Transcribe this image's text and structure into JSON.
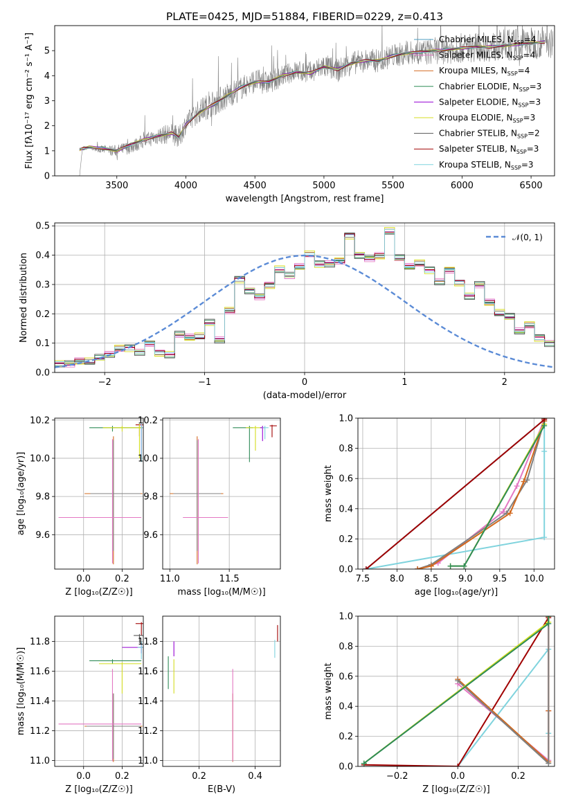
{
  "title": "PLATE=0425, MJD=51884, FIBERID=0229, z=0.413",
  "colors": [
    "#4c9ec2",
    "#e377c2",
    "#d2691e",
    "#2e8b57",
    "#9400d3",
    "#d4dd20",
    "#555555",
    "#a00000",
    "#7fd3dd",
    "#808080"
  ],
  "chart_data": [
    {
      "id": "spectrum",
      "type": "line",
      "xlabel": "wavelength [Angstrom, rest frame]",
      "ylabel": "Flux [f$_\\lambda$10$^{-17}$ erg cm$^{-2}$ s$^{-1}$ A$^{-1}$]",
      "ylabel_display": "Flux [fλ10⁻¹⁷ erg cm⁻² s⁻¹ A⁻¹]",
      "xlim": [
        3050,
        6670
      ],
      "ylim": [
        0,
        6.0
      ],
      "xticks": [
        3500,
        4000,
        4500,
        5000,
        5500,
        6000,
        6500
      ],
      "yticks": [
        0,
        1,
        2,
        3,
        4,
        5
      ],
      "legend_position": "top-right",
      "legend": [
        "Chabrier MILES, N_SSP=4",
        "Salpeter MILES, N_SSP=4",
        "Kroupa MILES, N_SSP=4",
        "Chabrier ELODIE, N_SSP=3",
        "Salpeter ELODIE, N_SSP=3",
        "Kroupa ELODIE, N_SSP=3",
        "Chabrier STELIB, N_SSP=2",
        "Salpeter STELIB, N_SSP=3",
        "Kroupa STELIB, N_SSP=3"
      ],
      "data_envelope": {
        "x": [
          3230,
          3250,
          3300,
          3400,
          3500,
          3600,
          3700,
          3800,
          3900,
          3950,
          4000,
          4100,
          4200,
          4300,
          4400,
          4500,
          4600,
          4700,
          4800,
          4900,
          5000,
          5100,
          5200,
          5300,
          5400,
          5500,
          5600,
          5700,
          5800,
          5900,
          6000,
          6100,
          6200,
          6300,
          6400,
          6500,
          6600
        ],
        "y": [
          0,
          1.05,
          1.1,
          1.05,
          1.0,
          1.15,
          1.4,
          1.6,
          1.7,
          1.5,
          2.1,
          2.6,
          2.9,
          3.2,
          3.5,
          3.8,
          3.7,
          4.0,
          4.2,
          4.1,
          4.4,
          4.2,
          4.5,
          4.6,
          4.6,
          4.8,
          4.9,
          4.9,
          5.0,
          5.05,
          5.1,
          5.15,
          5.15,
          5.2,
          5.25,
          5.3,
          5.35
        ]
      },
      "noise_amplitude": [
        0.05,
        0.05,
        0.05,
        0.3,
        0.4,
        0.45,
        0.5,
        0.6,
        0.7,
        0.8,
        0.7,
        0.8,
        0.9,
        0.9,
        0.8,
        0.8,
        0.8,
        0.7,
        0.7,
        0.8,
        0.8,
        0.8,
        0.8,
        0.8,
        0.8,
        0.8,
        0.8,
        0.9,
        0.9,
        1.0,
        1.0,
        1.0,
        1.0,
        1.1,
        1.1,
        1.1,
        1.1
      ],
      "model": {
        "x": [
          3230,
          3260,
          3300,
          3400,
          3500,
          3600,
          3700,
          3800,
          3900,
          3950,
          4000,
          4100,
          4200,
          4300,
          4400,
          4500,
          4600,
          4700,
          4800,
          4900,
          5000,
          5100,
          5200,
          5300,
          5400,
          5500,
          5600,
          5700,
          5800,
          5900,
          6000,
          6100,
          6200,
          6300,
          6400,
          6500,
          6600
        ],
        "y": [
          1.05,
          1.1,
          1.15,
          1.1,
          1.0,
          1.25,
          1.45,
          1.6,
          1.7,
          1.55,
          2.05,
          2.55,
          2.85,
          3.2,
          3.55,
          3.75,
          3.75,
          4.0,
          4.15,
          4.1,
          4.35,
          4.25,
          4.5,
          4.6,
          4.6,
          4.8,
          4.9,
          4.95,
          5.0,
          5.05,
          5.1,
          5.15,
          5.15,
          5.2,
          5.25,
          5.3,
          5.35
        ]
      }
    },
    {
      "id": "residuals",
      "type": "histogram",
      "xlabel": "(data-model)/error",
      "ylabel": "Normed distribution",
      "xlim": [
        -2.5,
        2.5
      ],
      "ylim": [
        0,
        0.51
      ],
      "xticks": [
        -2,
        -1,
        0,
        1,
        2
      ],
      "yticks": [
        0.0,
        0.1,
        0.2,
        0.3,
        0.4,
        0.5
      ],
      "legend_position": "top-right",
      "legend": [
        "𝒩(0, 1)"
      ],
      "bin_width": 0.1,
      "bins_start": -2.5,
      "values": [
        0.03,
        0.03,
        0.04,
        0.035,
        0.05,
        0.06,
        0.08,
        0.085,
        0.07,
        0.1,
        0.07,
        0.06,
        0.13,
        0.12,
        0.12,
        0.17,
        0.11,
        0.21,
        0.32,
        0.28,
        0.26,
        0.3,
        0.35,
        0.33,
        0.36,
        0.4,
        0.37,
        0.37,
        0.38,
        0.47,
        0.4,
        0.39,
        0.4,
        0.48,
        0.39,
        0.36,
        0.37,
        0.35,
        0.31,
        0.35,
        0.31,
        0.26,
        0.3,
        0.24,
        0.2,
        0.19,
        0.14,
        0.16,
        0.12,
        0.1,
        0.1,
        0.08,
        0.07,
        0.06,
        0.06,
        0.06,
        0.05,
        0.04,
        0.04,
        0.03,
        0.03,
        0.03
      ],
      "series_offsets": [
        0.0,
        0.012,
        -0.01,
        0.008,
        -0.006,
        0.015,
        -0.012,
        0.005,
        -0.008
      ]
    },
    {
      "id": "age-vs-Z",
      "type": "errorbar",
      "xlabel": "Z [log$_{10}$(Z/Z$_\\odot$)]",
      "xlabel_display": "Z [log₁₀(Z/Z☉)]",
      "ylabel": "age  [log$_{10}$(age/yr)]",
      "ylabel_display": "age  [log₁₀(age/yr)]",
      "xlim": [
        -0.15,
        0.31
      ],
      "ylim": [
        9.42,
        10.21
      ],
      "xticks": [
        0.0,
        0.2
      ],
      "yticks": [
        9.6,
        9.8,
        10.0,
        10.2
      ],
      "points": [
        {
          "x": 0.155,
          "y": 9.815,
          "xerr": [
            0.15,
            0.15
          ],
          "yerr": [
            0.37,
            0.3
          ],
          "c": 2
        },
        {
          "x": 0.155,
          "y": 9.815,
          "xerr": [
            0.12,
            0.14
          ],
          "yerr": [
            0.3,
            0.28
          ],
          "c": 9
        },
        {
          "x": 0.15,
          "y": 9.69,
          "xerr": [
            0.28,
            0.15
          ],
          "yerr": [
            0.24,
            0.41
          ],
          "c": 1
        },
        {
          "x": 0.15,
          "y": 10.16,
          "xerr": [
            0.12,
            0.15
          ],
          "yerr": [
            0.02,
            0.01
          ],
          "c": 3
        },
        {
          "x": 0.2,
          "y": 10.16,
          "xerr": [
            0.1,
            0.1
          ],
          "yerr": [
            0.02,
            0.01
          ],
          "c": 5
        },
        {
          "x": 0.29,
          "y": 10.175,
          "xerr": [
            0.02,
            0.02
          ],
          "yerr": [
            0.06,
            0.005
          ],
          "c": 7
        },
        {
          "x": 0.3,
          "y": 10.16,
          "xerr": [
            0.01,
            0.01
          ],
          "yerr": [
            0.15,
            0.02
          ],
          "c": 4
        },
        {
          "x": 0.3,
          "y": 10.16,
          "xerr": [
            0.01,
            0.01
          ],
          "yerr": [
            0.18,
            0.02
          ],
          "c": 8
        },
        {
          "x": 0.29,
          "y": 10.16,
          "xerr": [
            0.01,
            0.01
          ],
          "yerr": [
            0.16,
            0.02
          ],
          "c": 5
        }
      ]
    },
    {
      "id": "age-vs-mass",
      "type": "errorbar",
      "xlabel": "mass [log$_{10}$(M/M$_\\odot$)]",
      "xlabel_display": "mass [log₁₀(M/M☉)]",
      "xlim": [
        10.94,
        11.93
      ],
      "ylim": [
        9.42,
        10.21
      ],
      "xticks": [
        11.0,
        11.5
      ],
      "yticks": [
        9.6,
        9.8,
        10.0,
        10.2
      ],
      "points": [
        {
          "x": 11.23,
          "y": 9.815,
          "xerr": [
            0.23,
            0.22
          ],
          "yerr": [
            0.37,
            0.3
          ],
          "c": 2
        },
        {
          "x": 11.23,
          "y": 9.815,
          "xerr": [
            0.2,
            0.2
          ],
          "yerr": [
            0.3,
            0.28
          ],
          "c": 9
        },
        {
          "x": 11.24,
          "y": 9.69,
          "xerr": [
            0.13,
            0.25
          ],
          "yerr": [
            0.24,
            0.41
          ],
          "c": 1
        },
        {
          "x": 11.67,
          "y": 10.16,
          "xerr": [
            0.14,
            0.03
          ],
          "yerr": [
            0.18,
            0.01
          ],
          "c": 3
        },
        {
          "x": 11.72,
          "y": 10.16,
          "xerr": [
            0.08,
            0.05
          ],
          "yerr": [
            0.12,
            0.01
          ],
          "c": 5
        },
        {
          "x": 11.86,
          "y": 10.17,
          "xerr": [
            0.02,
            0.04
          ],
          "yerr": [
            0.06,
            0.005
          ],
          "c": 7
        },
        {
          "x": 11.78,
          "y": 10.16,
          "xerr": [
            0.02,
            0.02
          ],
          "yerr": [
            0.07,
            0.01
          ],
          "c": 4
        },
        {
          "x": 11.8,
          "y": 10.16,
          "xerr": [
            0.02,
            0.03
          ],
          "yerr": [
            0.06,
            0.01
          ],
          "c": 8
        }
      ]
    },
    {
      "id": "cumulative-age",
      "type": "line",
      "xlabel": "age  [log$_{10}$(age/yr)]",
      "xlabel_display": "age  [log₁₀(age/yr)]",
      "ylabel": "mass weight",
      "xlim": [
        7.43,
        10.3
      ],
      "ylim": [
        0,
        1.0
      ],
      "xticks": [
        7.5,
        8.0,
        8.5,
        9.0,
        9.5,
        10.0
      ],
      "yticks": [
        0.0,
        0.2,
        0.4,
        0.6,
        0.8,
        1.0
      ],
      "series": [
        {
          "c": 8,
          "x": [
            7.55,
            10.15,
            10.15,
            10.15
          ],
          "y": [
            0.0,
            0.21,
            0.78,
            1.0
          ]
        },
        {
          "c": 0,
          "x": [
            7.55,
            10.15,
            10.15
          ],
          "y": [
            0.0,
            0.99,
            1.0
          ]
        },
        {
          "c": 1,
          "x": [
            8.3,
            8.6,
            9.55,
            9.75,
            10.15,
            10.15
          ],
          "y": [
            0.0,
            0.04,
            0.38,
            0.55,
            0.99,
            1.0
          ]
        },
        {
          "c": 9,
          "x": [
            8.3,
            8.5,
            9.6,
            9.9,
            10.15,
            10.15
          ],
          "y": [
            0.0,
            0.03,
            0.37,
            0.59,
            0.98,
            1.0
          ]
        },
        {
          "c": 2,
          "x": [
            8.3,
            8.5,
            9.65,
            9.85,
            10.15,
            10.15
          ],
          "y": [
            0.0,
            0.02,
            0.37,
            0.58,
            0.98,
            1.0
          ]
        },
        {
          "c": 5,
          "x": [
            8.78,
            8.98,
            10.15,
            10.15
          ],
          "y": [
            0.02,
            0.02,
            0.96,
            1.0
          ]
        },
        {
          "c": 3,
          "x": [
            8.78,
            8.98,
            10.15,
            10.15
          ],
          "y": [
            0.02,
            0.02,
            0.95,
            1.0
          ]
        },
        {
          "c": 7,
          "x": [
            7.55,
            10.15,
            10.15
          ],
          "y": [
            0.0,
            0.99,
            1.0
          ]
        }
      ]
    },
    {
      "id": "mass-vs-Z",
      "type": "errorbar",
      "xlabel": "Z [log$_{10}$(Z/Z$_\\odot$)]",
      "xlabel_display": "Z [log₁₀(Z/Z☉)]",
      "ylabel": "mass [log$_{10}$(M/M$_\\odot$)]",
      "ylabel_display": "mass [log₁₀(M/M☉)]",
      "xlim": [
        -0.15,
        0.31
      ],
      "ylim": [
        10.96,
        11.97
      ],
      "xticks": [
        0.0,
        0.2
      ],
      "yticks": [
        11.0,
        11.2,
        11.4,
        11.6,
        11.8
      ],
      "points": [
        {
          "x": 0.155,
          "y": 11.23,
          "xerr": [
            0.15,
            0.15
          ],
          "yerr": [
            0.24,
            0.22
          ],
          "c": 2
        },
        {
          "x": 0.155,
          "y": 11.23,
          "xerr": [
            0.14,
            0.14
          ],
          "yerr": [
            0.22,
            0.22
          ],
          "c": 9
        },
        {
          "x": 0.15,
          "y": 11.245,
          "xerr": [
            0.28,
            0.15
          ],
          "yerr": [
            0.25,
            0.37
          ],
          "c": 1
        },
        {
          "x": 0.15,
          "y": 11.67,
          "xerr": [
            0.12,
            0.15
          ],
          "yerr": [
            0.02,
            0.01
          ],
          "c": 3
        },
        {
          "x": 0.2,
          "y": 11.65,
          "xerr": [
            0.12,
            0.1
          ],
          "yerr": [
            0.2,
            0.01
          ],
          "c": 5
        },
        {
          "x": 0.3,
          "y": 11.92,
          "xerr": [
            0.03,
            0.01
          ],
          "yerr": [
            0.08,
            0.01
          ],
          "c": 7
        },
        {
          "x": 0.29,
          "y": 11.84,
          "xerr": [
            0.03,
            0.02
          ],
          "yerr": [
            0.05,
            0.01
          ],
          "c": 6
        },
        {
          "x": 0.3,
          "y": 11.76,
          "xerr": [
            0.1,
            0.01
          ],
          "yerr": [
            0.04,
            0.03
          ],
          "c": 4
        },
        {
          "x": 0.3,
          "y": 11.76,
          "xerr": [
            0.02,
            0.01
          ],
          "yerr": [
            0.08,
            0.04
          ],
          "c": 8
        }
      ]
    },
    {
      "id": "mass-vs-EBV",
      "type": "errorbar",
      "xlabel": "E(B-V)",
      "xlim": [
        0.07,
        0.49
      ],
      "ylim": [
        10.96,
        11.97
      ],
      "xticks": [
        0.2,
        0.4
      ],
      "yticks": [
        11.0,
        11.2,
        11.4,
        11.6,
        11.8
      ],
      "points": [
        {
          "x": 0.32,
          "y": 11.23,
          "xerr": [
            0.0,
            0.0
          ],
          "yerr": [
            0.24,
            0.22
          ],
          "c": 2
        },
        {
          "x": 0.32,
          "y": 11.245,
          "xerr": [
            0.0,
            0.0
          ],
          "yerr": [
            0.25,
            0.37
          ],
          "c": 1
        },
        {
          "x": 0.09,
          "y": 11.6,
          "xerr": [
            0.0,
            0.0
          ],
          "yerr": [
            0.12,
            0.1
          ],
          "c": 3
        },
        {
          "x": 0.11,
          "y": 11.58,
          "xerr": [
            0.0,
            0.0
          ],
          "yerr": [
            0.13,
            0.1
          ],
          "c": 5
        },
        {
          "x": 0.11,
          "y": 11.75,
          "xerr": [
            0.0,
            0.0
          ],
          "yerr": [
            0.05,
            0.05
          ],
          "c": 4
        },
        {
          "x": 0.47,
          "y": 11.75,
          "xerr": [
            0.0,
            0.0
          ],
          "yerr": [
            0.06,
            0.06
          ],
          "c": 8
        },
        {
          "x": 0.48,
          "y": 11.85,
          "xerr": [
            0.0,
            0.0
          ],
          "yerr": [
            0.05,
            0.06
          ],
          "c": 7
        }
      ]
    },
    {
      "id": "cumulative-Z",
      "type": "line",
      "xlabel": "Z [log$_{10}$(Z/Z$_\\odot$)]",
      "xlabel_display": "Z [log₁₀(Z/Z☉)]",
      "ylabel": "mass weight",
      "xlim": [
        -0.33,
        0.32
      ],
      "ylim": [
        0,
        1.0
      ],
      "xticks": [
        -0.2,
        0.0,
        0.2
      ],
      "yticks": [
        0.0,
        0.2,
        0.4,
        0.6,
        0.8,
        1.0
      ],
      "series": [
        {
          "c": 8,
          "x": [
            0.0,
            0.3,
            0.3,
            0.3
          ],
          "y": [
            0.0,
            0.78,
            0.22,
            1.0
          ]
        },
        {
          "c": 7,
          "x": [
            -0.31,
            0.0,
            0.3,
            0.3
          ],
          "y": [
            0.01,
            0.0,
            0.99,
            1.0
          ]
        },
        {
          "c": 1,
          "x": [
            0.0,
            0.3,
            0.3,
            0.3
          ],
          "y": [
            0.55,
            0.04,
            0.37,
            1.0
          ]
        },
        {
          "c": 2,
          "x": [
            0.0,
            0.3,
            0.3,
            0.3
          ],
          "y": [
            0.58,
            0.03,
            0.37,
            1.0
          ]
        },
        {
          "c": 9,
          "x": [
            0.0,
            0.3,
            0.3
          ],
          "y": [
            0.57,
            0.02,
            1.0
          ]
        },
        {
          "c": 5,
          "x": [
            -0.31,
            0.3,
            0.3
          ],
          "y": [
            0.02,
            0.96,
            1.0
          ]
        },
        {
          "c": 3,
          "x": [
            -0.31,
            0.3,
            0.3
          ],
          "y": [
            0.02,
            0.95,
            1.0
          ]
        }
      ]
    }
  ]
}
